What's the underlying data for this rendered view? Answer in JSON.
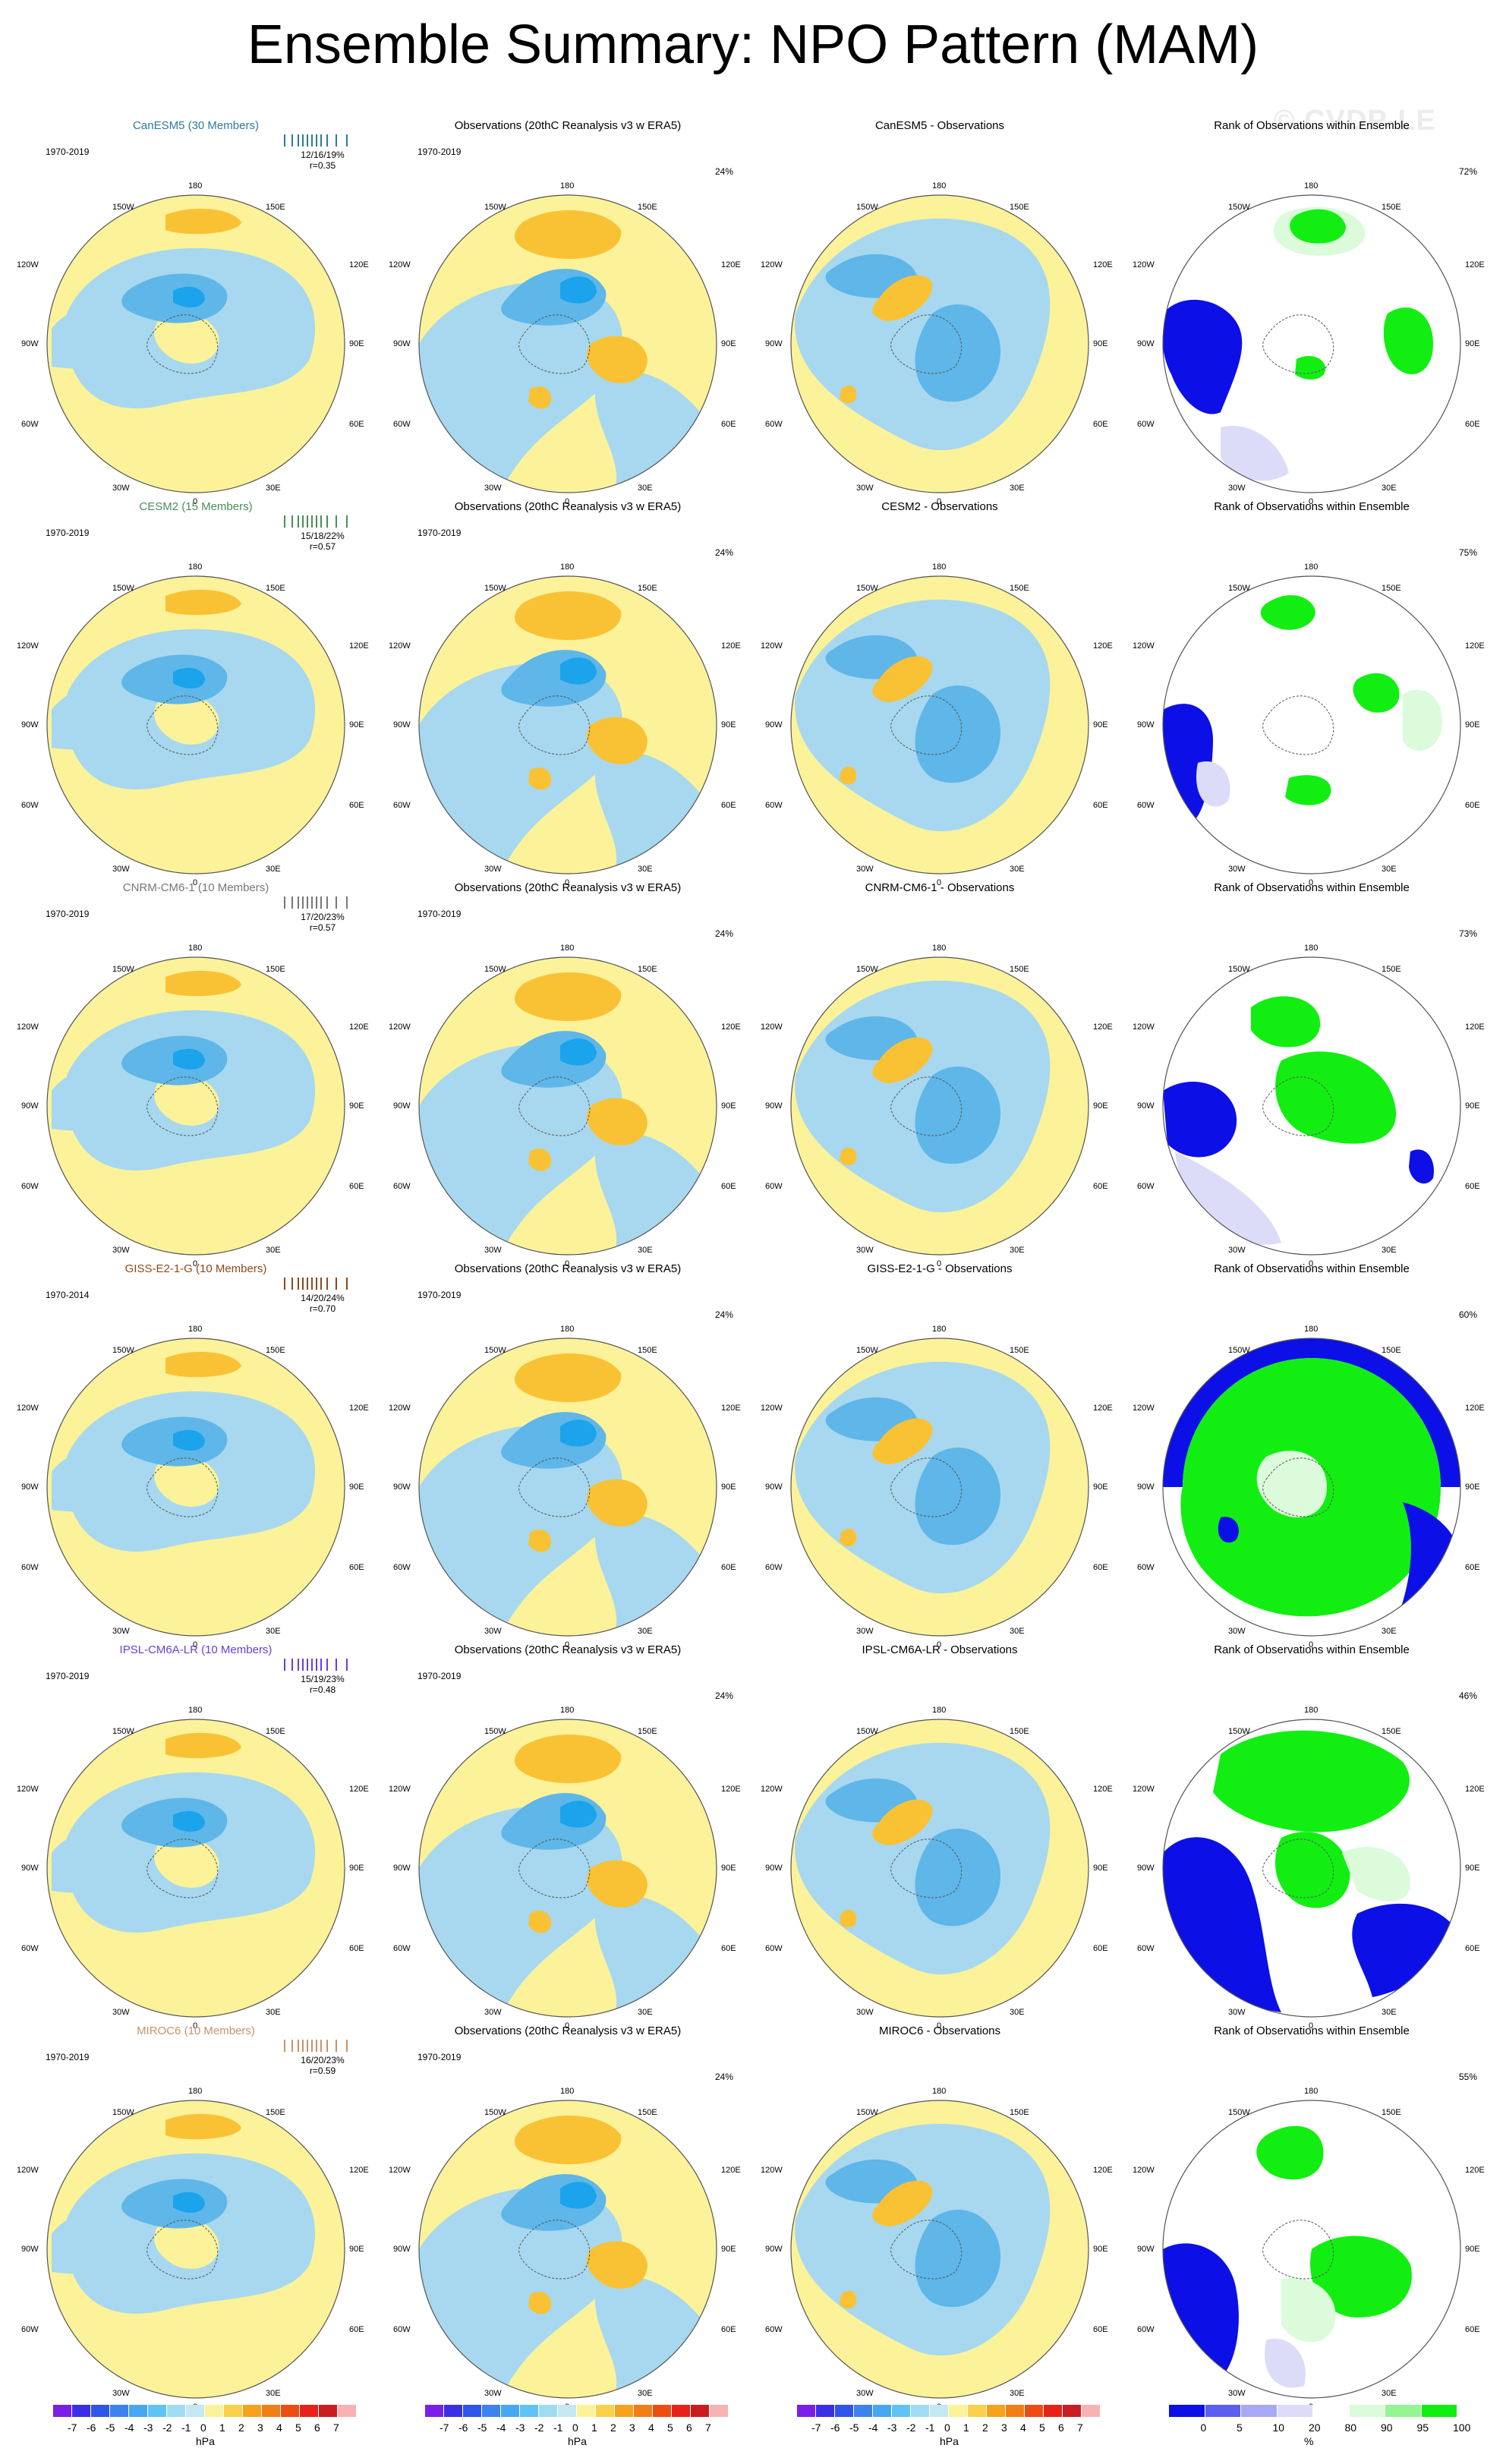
{
  "title": "Ensemble Summary: NPO Pattern (MAM)",
  "watermark": "© CVDP-LE",
  "colors": {
    "pos1": "#fbf29a",
    "pos2": "#f9c234",
    "neg1": "#a7d8ef",
    "neg2": "#5fb6e8",
    "neg3": "#1ba3ec",
    "rank_low": "#0c10e6",
    "rank_high": "#12ee12",
    "rank_light_low": "#dddcf8",
    "rank_light_high": "#dbfbdb"
  },
  "column_titles": {
    "obs": "Observations (20thC Reanalysis v3 w ERA5)",
    "rank": "Rank of Observations within Ensemble"
  },
  "map_labels": {
    "top": "180",
    "ul": "150W",
    "ur": "150E",
    "l1": "120W",
    "r1": "120E",
    "l2": "90W",
    "r2": "90E",
    "l3": "60W",
    "r3": "60E",
    "bl": "30W",
    "br": "30E",
    "bottom": "0"
  },
  "rows": [
    {
      "model_title": "CanESM5 (30 Members)",
      "model_color": "#2b7b9c",
      "period": "1970-2019",
      "stats_line1": "12/16/19%",
      "stats_line2": "r=0.35",
      "obs_period": "1970-2019",
      "obs_pct": "24%",
      "diff_title": "CanESM5 - Observations",
      "rank_pct": "72%"
    },
    {
      "model_title": "CESM2 (15 Members)",
      "model_color": "#4a8c5a",
      "period": "1970-2019",
      "stats_line1": "15/18/22%",
      "stats_line2": "r=0.57",
      "obs_period": "1970-2019",
      "obs_pct": "24%",
      "diff_title": "CESM2 - Observations",
      "rank_pct": "75%"
    },
    {
      "model_title": "CNRM-CM6-1 (10 Members)",
      "model_color": "#777777",
      "period": "1970-2019",
      "stats_line1": "17/20/23%",
      "stats_line2": "r=0.57",
      "obs_period": "1970-2019",
      "obs_pct": "24%",
      "diff_title": "CNRM-CM6-1 - Observations",
      "rank_pct": "73%"
    },
    {
      "model_title": "GISS-E2-1-G (10 Members)",
      "model_color": "#8a4a1c",
      "period": "1970-2014",
      "stats_line1": "14/20/24%",
      "stats_line2": "r=0.70",
      "obs_period": "1970-2019",
      "obs_pct": "24%",
      "diff_title": "GISS-E2-1-G - Observations",
      "rank_pct": "60%"
    },
    {
      "model_title": "IPSL-CM6A-LR (10 Members)",
      "model_color": "#6a3fd8",
      "period": "1970-2019",
      "stats_line1": "15/19/23%",
      "stats_line2": "r=0.48",
      "obs_period": "1970-2019",
      "obs_pct": "24%",
      "diff_title": "IPSL-CM6A-LR - Observations",
      "rank_pct": "46%"
    },
    {
      "model_title": "MIROC6 (10 Members)",
      "model_color": "#c8926a",
      "period": "1970-2019",
      "stats_line1": "16/20/23%",
      "stats_line2": "r=0.59",
      "obs_period": "1970-2019",
      "obs_pct": "24%",
      "diff_title": "MIROC6 - Observations",
      "rank_pct": "55%"
    }
  ],
  "colorbar_hpa": {
    "ticks": [
      "-7",
      "-6",
      "-5",
      "-4",
      "-3",
      "-2",
      "-1",
      "0",
      "1",
      "2",
      "3",
      "4",
      "5",
      "6",
      "7"
    ],
    "colors": [
      "#7a1fe8",
      "#3b2fe6",
      "#2f55ea",
      "#3e82ee",
      "#47a7f2",
      "#5fc3f4",
      "#9fdcf2",
      "#c4e8f2",
      "#fbf29a",
      "#f9d14b",
      "#f7a21c",
      "#f27e18",
      "#ee4d12",
      "#e5231b",
      "#c91d23",
      "#f7b3b3"
    ],
    "unit": "hPa"
  },
  "colorbar_rank": {
    "ticks": [
      "0",
      "5",
      "10",
      "20",
      "80",
      "90",
      "95",
      "100"
    ],
    "colors": [
      "#0c10e6",
      "#5c5ff0",
      "#a8a8f4",
      "#dddcf8",
      "#ffffff",
      "#dbfbdb",
      "#95f595",
      "#12ee12"
    ],
    "unit": "%"
  }
}
